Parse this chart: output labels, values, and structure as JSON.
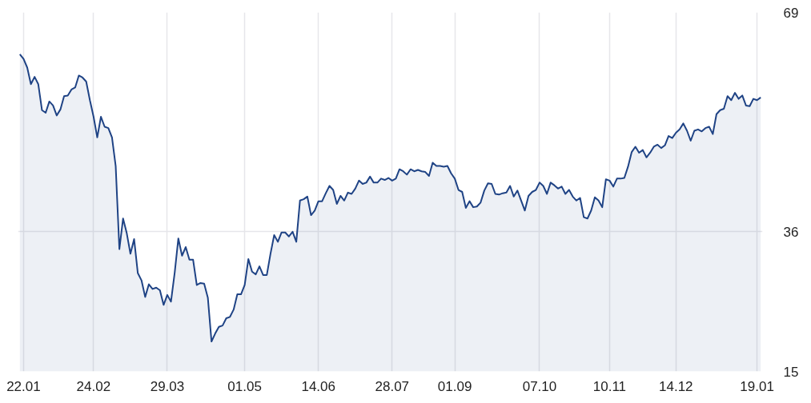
{
  "chart_data": {
    "type": "area",
    "categories": [
      null,
      "22.01",
      null,
      null,
      null,
      null,
      null,
      null,
      null,
      null,
      null,
      null,
      null,
      null,
      null,
      null,
      null,
      null,
      null,
      null,
      "24.02",
      null,
      null,
      null,
      null,
      null,
      null,
      null,
      null,
      null,
      null,
      null,
      null,
      null,
      null,
      null,
      null,
      null,
      null,
      null,
      "29.03",
      null,
      null,
      null,
      null,
      null,
      null,
      null,
      null,
      null,
      null,
      null,
      null,
      null,
      null,
      null,
      null,
      null,
      null,
      null,
      null,
      "01.05",
      null,
      null,
      null,
      null,
      null,
      null,
      null,
      null,
      null,
      null,
      null,
      null,
      null,
      null,
      null,
      null,
      null,
      null,
      null,
      "14.06",
      null,
      null,
      null,
      null,
      null,
      null,
      null,
      null,
      null,
      null,
      null,
      null,
      null,
      null,
      null,
      null,
      null,
      null,
      null,
      "28.07",
      null,
      null,
      null,
      null,
      null,
      null,
      null,
      null,
      null,
      null,
      null,
      null,
      null,
      null,
      null,
      null,
      "01.09",
      null,
      null,
      null,
      null,
      null,
      null,
      null,
      null,
      null,
      null,
      null,
      null,
      null,
      null,
      null,
      null,
      null,
      null,
      null,
      null,
      null,
      null,
      "07.10",
      null,
      null,
      null,
      null,
      null,
      null,
      null,
      null,
      null,
      null,
      null,
      null,
      null,
      null,
      null,
      null,
      null,
      null,
      "10.11",
      null,
      null,
      null,
      null,
      null,
      null,
      null,
      null,
      null,
      null,
      null,
      null,
      null,
      null,
      null,
      null,
      null,
      "14.12",
      null,
      null,
      null,
      null,
      null,
      null,
      null,
      null,
      null,
      null,
      null,
      null,
      null,
      null,
      null,
      null,
      null,
      null,
      null,
      null,
      null,
      "19.01",
      null
    ],
    "ylim": [
      15,
      69
    ],
    "yticks": [
      15,
      36,
      69
    ],
    "grid": true,
    "series": [
      {
        "color": "#1f4385",
        "values": [
          62.7,
          62.0,
          60.7,
          58.2,
          59.3,
          58.2,
          54.3,
          53.9,
          55.6,
          55.0,
          53.5,
          54.4,
          56.4,
          56.5,
          57.4,
          57.7,
          59.5,
          59.2,
          58.6,
          55.8,
          53.3,
          50.2,
          53.3,
          51.8,
          51.6,
          50.2,
          45.9,
          33.4,
          38.0,
          35.8,
          32.7,
          34.9,
          29.8,
          28.7,
          26.2,
          28.1,
          27.4,
          27.6,
          27.2,
          25.0,
          26.5,
          25.5,
          29.8,
          35.0,
          32.4,
          33.7,
          31.8,
          31.8,
          28.0,
          28.3,
          28.2,
          26.1,
          19.5,
          20.7,
          21.7,
          21.9,
          23.0,
          23.2,
          24.3,
          26.6,
          26.6,
          28.0,
          31.9,
          30.0,
          29.6,
          30.8,
          29.5,
          29.5,
          32.7,
          35.5,
          34.5,
          35.9,
          35.9,
          35.3,
          36.0,
          34.5,
          40.7,
          40.9,
          41.3,
          38.5,
          39.2,
          40.6,
          40.6,
          41.8,
          42.9,
          42.3,
          40.2,
          41.4,
          40.7,
          41.9,
          41.7,
          42.5,
          43.7,
          43.2,
          43.4,
          44.3,
          43.4,
          43.4,
          44.0,
          43.8,
          44.1,
          43.7,
          44.0,
          45.4,
          45.1,
          44.6,
          45.4,
          45.1,
          45.3,
          45.1,
          45.0,
          44.4,
          46.4,
          45.9,
          45.9,
          45.8,
          45.9,
          44.8,
          44.0,
          42.3,
          42.0,
          39.6,
          40.6,
          39.7,
          39.8,
          40.4,
          42.2,
          43.3,
          43.2,
          41.7,
          41.6,
          41.8,
          41.9,
          42.9,
          41.3,
          42.2,
          40.7,
          39.2,
          41.4,
          42.0,
          42.3,
          43.4,
          42.9,
          41.7,
          43.4,
          43.0,
          42.5,
          42.8,
          41.7,
          42.3,
          41.3,
          40.7,
          41.1,
          38.2,
          38.0,
          39.2,
          41.2,
          40.7,
          39.7,
          43.9,
          43.7,
          42.8,
          44.0,
          44.0,
          44.1,
          45.8,
          48.0,
          48.8,
          47.9,
          48.3,
          47.2,
          47.9,
          48.8,
          49.1,
          48.6,
          49.0,
          50.4,
          50.1,
          50.9,
          51.4,
          52.3,
          51.2,
          49.7,
          51.2,
          51.4,
          51.1,
          51.6,
          51.8,
          50.7,
          53.7,
          54.3,
          54.5,
          56.4,
          55.8,
          56.9,
          56.0,
          56.5,
          55.0,
          54.9,
          56.0,
          55.8,
          56.2
        ]
      }
    ]
  }
}
